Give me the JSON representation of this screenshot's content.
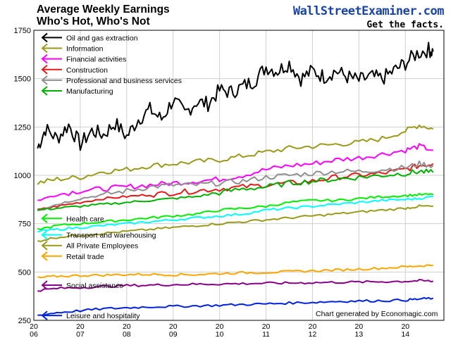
{
  "title_line1": "Average Weekly Earnings",
  "title_line2": "Who's Hot, Who's Not",
  "brand_name": "WallStreetExaminer.com",
  "brand_tagline": "Get the facts.",
  "credit": "Chart generated by Economagic.com",
  "chart_data": {
    "type": "line",
    "ylim": [
      250,
      1750
    ],
    "yticks": [
      250,
      500,
      750,
      1000,
      1250,
      1500,
      1750
    ],
    "xlim": [
      2006.0,
      2014.83
    ],
    "xticks": [
      {
        "x": 2006,
        "label_top": "20",
        "label_bottom": "06"
      },
      {
        "x": 2007,
        "label_top": "20",
        "label_bottom": "07"
      },
      {
        "x": 2008,
        "label_top": "20",
        "label_bottom": "08"
      },
      {
        "x": 2009,
        "label_top": "20",
        "label_bottom": "09"
      },
      {
        "x": 2010,
        "label_top": "20",
        "label_bottom": "10"
      },
      {
        "x": 2011,
        "label_top": "20",
        "label_bottom": "11"
      },
      {
        "x": 2012,
        "label_top": "20",
        "label_bottom": "12"
      },
      {
        "x": 2013,
        "label_top": "20",
        "label_bottom": "13"
      },
      {
        "x": 2014,
        "label_top": "20",
        "label_bottom": "14"
      }
    ],
    "grid": true,
    "series": [
      {
        "name": "Oil and gas extraction",
        "color": "#000000",
        "label_y": 1712,
        "label_group": "top",
        "points": [
          [
            2006.08,
            1140
          ],
          [
            2006.25,
            1240
          ],
          [
            2006.5,
            1190
          ],
          [
            2006.75,
            1260
          ],
          [
            2007.0,
            1160
          ],
          [
            2007.25,
            1230
          ],
          [
            2007.5,
            1210
          ],
          [
            2007.75,
            1270
          ],
          [
            2008.0,
            1200
          ],
          [
            2008.25,
            1290
          ],
          [
            2008.5,
            1340
          ],
          [
            2008.75,
            1290
          ],
          [
            2009.0,
            1390
          ],
          [
            2009.25,
            1320
          ],
          [
            2009.5,
            1380
          ],
          [
            2009.75,
            1370
          ],
          [
            2010.0,
            1440
          ],
          [
            2010.25,
            1430
          ],
          [
            2010.5,
            1460
          ],
          [
            2010.75,
            1490
          ],
          [
            2011.0,
            1560
          ],
          [
            2011.25,
            1540
          ],
          [
            2011.5,
            1580
          ],
          [
            2011.75,
            1500
          ],
          [
            2012.0,
            1540
          ],
          [
            2012.25,
            1510
          ],
          [
            2012.5,
            1540
          ],
          [
            2012.75,
            1510
          ],
          [
            2013.0,
            1490
          ],
          [
            2013.25,
            1510
          ],
          [
            2013.5,
            1500
          ],
          [
            2013.75,
            1540
          ],
          [
            2014.0,
            1580
          ],
          [
            2014.25,
            1630
          ],
          [
            2014.5,
            1650
          ],
          [
            2014.6,
            1640
          ]
        ]
      },
      {
        "name": "Information",
        "color": "#9a9a1a",
        "label_y": 1657,
        "label_group": "top",
        "points": [
          [
            2006.08,
            960
          ],
          [
            2006.5,
            980
          ],
          [
            2007.0,
            990
          ],
          [
            2007.5,
            1020
          ],
          [
            2008.0,
            1030
          ],
          [
            2008.5,
            1050
          ],
          [
            2009.0,
            1060
          ],
          [
            2009.5,
            1070
          ],
          [
            2010.0,
            1080
          ],
          [
            2010.5,
            1100
          ],
          [
            2011.0,
            1120
          ],
          [
            2011.5,
            1140
          ],
          [
            2012.0,
            1150
          ],
          [
            2012.5,
            1160
          ],
          [
            2013.0,
            1170
          ],
          [
            2013.5,
            1190
          ],
          [
            2014.0,
            1230
          ],
          [
            2014.3,
            1260
          ],
          [
            2014.6,
            1240
          ]
        ]
      },
      {
        "name": "Financial activities",
        "color": "#ff00ff",
        "label_y": 1602,
        "label_group": "top",
        "points": [
          [
            2006.08,
            870
          ],
          [
            2006.5,
            900
          ],
          [
            2007.0,
            920
          ],
          [
            2007.5,
            930
          ],
          [
            2008.0,
            940
          ],
          [
            2008.5,
            950
          ],
          [
            2009.0,
            960
          ],
          [
            2009.5,
            970
          ],
          [
            2010.0,
            980
          ],
          [
            2010.5,
            1000
          ],
          [
            2011.0,
            1030
          ],
          [
            2011.5,
            1050
          ],
          [
            2012.0,
            1060
          ],
          [
            2012.5,
            1080
          ],
          [
            2013.0,
            1090
          ],
          [
            2013.5,
            1110
          ],
          [
            2014.0,
            1130
          ],
          [
            2014.3,
            1150
          ],
          [
            2014.6,
            1130
          ]
        ]
      },
      {
        "name": "Construction",
        "color": "#e41a1a",
        "label_y": 1547,
        "label_group": "top",
        "points": [
          [
            2006.08,
            820
          ],
          [
            2006.5,
            840
          ],
          [
            2007.0,
            860
          ],
          [
            2007.5,
            880
          ],
          [
            2008.0,
            890
          ],
          [
            2008.5,
            900
          ],
          [
            2009.0,
            910
          ],
          [
            2009.5,
            920
          ],
          [
            2010.0,
            930
          ],
          [
            2010.5,
            940
          ],
          [
            2011.0,
            950
          ],
          [
            2011.5,
            960
          ],
          [
            2012.0,
            970
          ],
          [
            2012.5,
            990
          ],
          [
            2013.0,
            1000
          ],
          [
            2013.5,
            1010
          ],
          [
            2014.0,
            1030
          ],
          [
            2014.3,
            1050
          ],
          [
            2014.6,
            1060
          ]
        ]
      },
      {
        "name": "Professional and business services",
        "color": "#909090",
        "label_y": 1492,
        "label_group": "top",
        "points": [
          [
            2006.08,
            820
          ],
          [
            2006.5,
            850
          ],
          [
            2007.0,
            880
          ],
          [
            2007.5,
            900
          ],
          [
            2008.0,
            920
          ],
          [
            2008.5,
            940
          ],
          [
            2009.0,
            950
          ],
          [
            2009.5,
            950
          ],
          [
            2010.0,
            960
          ],
          [
            2010.5,
            970
          ],
          [
            2011.0,
            990
          ],
          [
            2011.5,
            1000
          ],
          [
            2012.0,
            1010
          ],
          [
            2012.5,
            1020
          ],
          [
            2013.0,
            1020
          ],
          [
            2013.5,
            1030
          ],
          [
            2014.0,
            1040
          ],
          [
            2014.3,
            1060
          ],
          [
            2014.6,
            1050
          ]
        ]
      },
      {
        "name": "Manufacturing",
        "color": "#00b000",
        "label_y": 1437,
        "label_group": "top",
        "points": [
          [
            2006.08,
            820
          ],
          [
            2006.5,
            830
          ],
          [
            2007.0,
            840
          ],
          [
            2007.5,
            850
          ],
          [
            2008.0,
            860
          ],
          [
            2008.5,
            870
          ],
          [
            2009.0,
            880
          ],
          [
            2009.5,
            890
          ],
          [
            2010.0,
            910
          ],
          [
            2010.5,
            930
          ],
          [
            2011.0,
            940
          ],
          [
            2011.5,
            960
          ],
          [
            2012.0,
            970
          ],
          [
            2012.5,
            980
          ],
          [
            2013.0,
            990
          ],
          [
            2013.5,
            1000
          ],
          [
            2014.0,
            1010
          ],
          [
            2014.3,
            1020
          ],
          [
            2014.6,
            1015
          ]
        ]
      },
      {
        "name": "Health care",
        "color": "#00ee00",
        "label_y": 777,
        "label_group": "bottom",
        "points": [
          [
            2006.08,
            720
          ],
          [
            2006.5,
            740
          ],
          [
            2007.0,
            750
          ],
          [
            2007.5,
            760
          ],
          [
            2008.0,
            770
          ],
          [
            2008.5,
            780
          ],
          [
            2009.0,
            790
          ],
          [
            2009.5,
            800
          ],
          [
            2010.0,
            820
          ],
          [
            2010.5,
            830
          ],
          [
            2011.0,
            840
          ],
          [
            2011.5,
            860
          ],
          [
            2012.0,
            870
          ],
          [
            2012.5,
            870
          ],
          [
            2013.0,
            880
          ],
          [
            2013.5,
            890
          ],
          [
            2014.0,
            895
          ],
          [
            2014.3,
            900
          ],
          [
            2014.6,
            900
          ]
        ]
      },
      {
        "name": "Transport and warehousing",
        "color": "#00ffff",
        "label_y": 692,
        "label_group": "bottom",
        "points": [
          [
            2006.08,
            710
          ],
          [
            2006.5,
            720
          ],
          [
            2007.0,
            730
          ],
          [
            2007.5,
            740
          ],
          [
            2008.0,
            750
          ],
          [
            2008.5,
            760
          ],
          [
            2009.0,
            770
          ],
          [
            2009.5,
            780
          ],
          [
            2010.0,
            790
          ],
          [
            2010.5,
            800
          ],
          [
            2011.0,
            820
          ],
          [
            2011.5,
            830
          ],
          [
            2012.0,
            840
          ],
          [
            2012.5,
            850
          ],
          [
            2013.0,
            860
          ],
          [
            2013.5,
            870
          ],
          [
            2014.0,
            875
          ],
          [
            2014.3,
            880
          ],
          [
            2014.6,
            890
          ]
        ]
      },
      {
        "name": "All Private Employees",
        "color": "#9a9a1a",
        "label_y": 637,
        "label_group": "bottom",
        "points": [
          [
            2006.08,
            660
          ],
          [
            2006.5,
            680
          ],
          [
            2007.0,
            690
          ],
          [
            2007.5,
            700
          ],
          [
            2008.0,
            710
          ],
          [
            2008.5,
            720
          ],
          [
            2009.0,
            730
          ],
          [
            2009.5,
            740
          ],
          [
            2010.0,
            750
          ],
          [
            2010.5,
            760
          ],
          [
            2011.0,
            770
          ],
          [
            2011.5,
            780
          ],
          [
            2012.0,
            790
          ],
          [
            2012.5,
            800
          ],
          [
            2013.0,
            810
          ],
          [
            2013.5,
            820
          ],
          [
            2014.0,
            830
          ],
          [
            2014.3,
            840
          ],
          [
            2014.6,
            840
          ]
        ]
      },
      {
        "name": "Retail trade",
        "color": "#ffa500",
        "label_y": 582,
        "label_group": "bottom",
        "points": [
          [
            2006.08,
            470
          ],
          [
            2006.5,
            478
          ],
          [
            2007.0,
            482
          ],
          [
            2007.5,
            484
          ],
          [
            2008.0,
            487
          ],
          [
            2008.5,
            488
          ],
          [
            2009.0,
            486
          ],
          [
            2009.5,
            487
          ],
          [
            2010.0,
            492
          ],
          [
            2010.5,
            496
          ],
          [
            2011.0,
            498
          ],
          [
            2011.5,
            502
          ],
          [
            2012.0,
            506
          ],
          [
            2012.5,
            510
          ],
          [
            2013.0,
            515
          ],
          [
            2013.5,
            520
          ],
          [
            2014.0,
            527
          ],
          [
            2014.3,
            532
          ],
          [
            2014.6,
            535
          ]
        ]
      },
      {
        "name": "Social assistance",
        "color": "#880088",
        "label_y": 432,
        "label_group": "bottom",
        "points": [
          [
            2006.08,
            405
          ],
          [
            2006.5,
            415
          ],
          [
            2007.0,
            420
          ],
          [
            2007.5,
            425
          ],
          [
            2008.0,
            430
          ],
          [
            2008.5,
            432
          ],
          [
            2009.0,
            435
          ],
          [
            2009.5,
            437
          ],
          [
            2010.0,
            438
          ],
          [
            2010.5,
            440
          ],
          [
            2011.0,
            442
          ],
          [
            2011.5,
            443
          ],
          [
            2012.0,
            445
          ],
          [
            2012.5,
            447
          ],
          [
            2013.0,
            448
          ],
          [
            2013.5,
            450
          ],
          [
            2014.0,
            452
          ],
          [
            2014.3,
            455
          ],
          [
            2014.6,
            452
          ]
        ]
      },
      {
        "name": "Leisure and hospitality",
        "color": "#0022dd",
        "label_y": 275,
        "label_group": "bottom",
        "points": [
          [
            2006.08,
            275
          ],
          [
            2006.5,
            290
          ],
          [
            2007.0,
            300
          ],
          [
            2007.5,
            310
          ],
          [
            2008.0,
            315
          ],
          [
            2008.5,
            320
          ],
          [
            2009.0,
            322
          ],
          [
            2009.5,
            325
          ],
          [
            2010.0,
            328
          ],
          [
            2010.5,
            332
          ],
          [
            2011.0,
            335
          ],
          [
            2011.5,
            340
          ],
          [
            2012.0,
            343
          ],
          [
            2012.5,
            348
          ],
          [
            2013.0,
            350
          ],
          [
            2013.5,
            352
          ],
          [
            2014.0,
            355
          ],
          [
            2014.3,
            360
          ],
          [
            2014.6,
            365
          ]
        ]
      }
    ]
  }
}
